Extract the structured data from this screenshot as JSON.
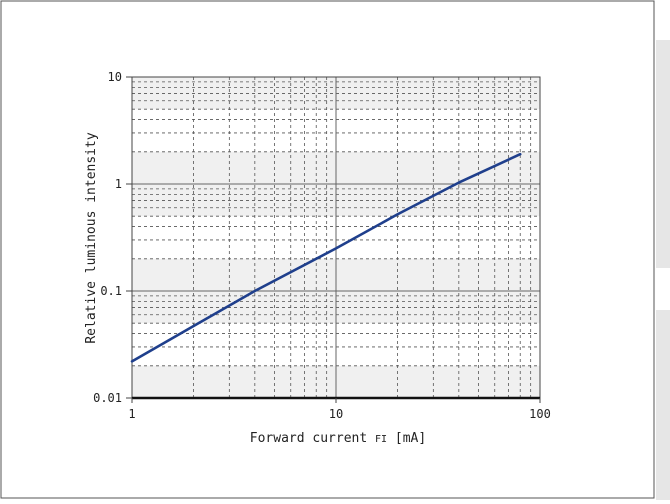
{
  "chart_data": {
    "type": "line",
    "title": "",
    "xlabel": "Forward current",
    "xlabel_symbol": "FI",
    "xlabel_unit": "[mA]",
    "ylabel": "Relative luminous intensity",
    "x_scale": "log",
    "y_scale": "log",
    "xlim": [
      1,
      100
    ],
    "ylim": [
      0.01,
      10
    ],
    "x_ticks": [
      1,
      10,
      100
    ],
    "x_tick_labels": [
      "1",
      "10",
      "100"
    ],
    "y_ticks": [
      0.01,
      0.1,
      1,
      10
    ],
    "y_tick_labels": [
      "0.01",
      "0.1",
      "1",
      "10"
    ],
    "grid": true,
    "shaded_bands": true,
    "series": [
      {
        "color": "#1f3f8c",
        "x": [
          1,
          2,
          4,
          10,
          20,
          40,
          80
        ],
        "y": [
          0.022,
          0.047,
          0.1,
          0.25,
          0.52,
          1.03,
          1.9
        ]
      }
    ]
  }
}
